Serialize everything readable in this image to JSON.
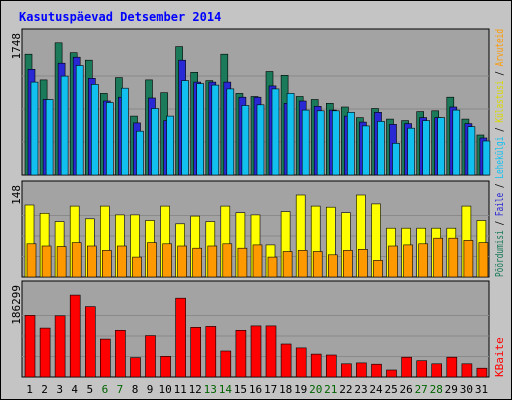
{
  "chart_data": {
    "type": "bar",
    "title": "Kasutuspäevad Detsember 2014",
    "categories": [
      "1",
      "2",
      "3",
      "4",
      "5",
      "6",
      "7",
      "8",
      "9",
      "10",
      "11",
      "12",
      "13",
      "14",
      "15",
      "16",
      "17",
      "18",
      "19",
      "20",
      "21",
      "22",
      "23",
      "24",
      "25",
      "26",
      "27",
      "28",
      "29",
      "30",
      "31"
    ],
    "weekend_days": [
      "6",
      "7",
      "13",
      "14",
      "20",
      "21",
      "27",
      "28"
    ],
    "panels": [
      {
        "id": "traffic",
        "ymax_label": "1748",
        "ylim": [
          0,
          1748
        ],
        "series": [
          {
            "name": "Pöördumisi",
            "color": "#1a7a5a",
            "values": [
              1600,
              1260,
              1750,
              1620,
              1520,
              1080,
              1290,
              780,
              1260,
              1090,
              1700,
              1360,
              1250,
              1600,
              1080,
              1040,
              1370,
              1320,
              1040,
              1000,
              950,
              900,
              760,
              880,
              740,
              720,
              840,
              850,
              1030,
              740,
              530
            ]
          },
          {
            "name": "Faile",
            "color": "#2828d4",
            "values": [
              1400,
              1000,
              1480,
              1560,
              1280,
              980,
              1030,
              690,
              1020,
              720,
              1520,
              1230,
              1230,
              1230,
              1030,
              1030,
              1180,
              950,
              980,
              910,
              860,
              780,
              700,
              830,
              670,
              680,
              760,
              760,
              900,
              680,
              490
            ]
          },
          {
            "name": "Lehekülgi",
            "color": "#12c0f0",
            "values": [
              1230,
              1000,
              1310,
              1450,
              1200,
              960,
              1150,
              580,
              880,
              780,
              1250,
              1210,
              1190,
              1140,
              920,
              930,
              1140,
              1080,
              860,
              850,
              850,
              830,
              650,
              710,
              420,
              620,
              720,
              760,
              860,
              640,
              450
            ]
          }
        ]
      },
      {
        "id": "visits",
        "ymax_label": "148",
        "ylim": [
          0,
          148
        ],
        "series": [
          {
            "name": "Külastusi",
            "color": "#ffff00",
            "values": [
              130,
              115,
              100,
              128,
              105,
              128,
              112,
              112,
              102,
              128,
              96,
              110,
              100,
              128,
              116,
              112,
              58,
              118,
              148,
              128,
              126,
              116,
              148,
              132,
              88,
              88,
              88,
              88,
              88,
              128,
              102
            ]
          },
          {
            "name": "Arvuteid",
            "color": "#ff9900",
            "values": [
              60,
              56,
              55,
              62,
              56,
              48,
              56,
              36,
              62,
              60,
              56,
              52,
              56,
              60,
              52,
              58,
              36,
              46,
              48,
              46,
              40,
              48,
              50,
              30,
              56,
              58,
              60,
              70,
              70,
              66,
              62
            ]
          }
        ]
      },
      {
        "id": "kbytes",
        "ymax_label": "186299",
        "ylim": [
          0,
          186299
        ],
        "series": [
          {
            "name": "KBaite",
            "color": "#ff0000",
            "values": [
              140000,
              111000,
              139000,
              186000,
              160000,
              86000,
              106000,
              44000,
              94000,
              47000,
              179000,
              113000,
              115000,
              59000,
              106000,
              116000,
              116000,
              75000,
              66000,
              52000,
              50000,
              30000,
              32000,
              29000,
              16000,
              45000,
              37000,
              30000,
              45000,
              30000,
              20000
            ]
          }
        ]
      }
    ],
    "right_legend": {
      "separator": " / ",
      "top": [
        "Pöördumisi",
        "Faile",
        "Lehekülgi",
        "Külastusi",
        "Arvuteid"
      ],
      "bottom": "KBaite",
      "colors": {
        "Pöördumisi": "#1a7a5a",
        "Faile": "#2828d4",
        "Lehekülgi": "#12c0f0",
        "Külastusi": "#d8d800",
        "Arvuteid": "#ff9900",
        "KBaite": "#ff0000",
        "separator": "#000000"
      }
    },
    "colors": {
      "background": "#c4c4c4",
      "plot": "#a3a3a3",
      "weekday_label": "#000000",
      "weekend_label": "#006400",
      "title": "#0000ff"
    }
  }
}
